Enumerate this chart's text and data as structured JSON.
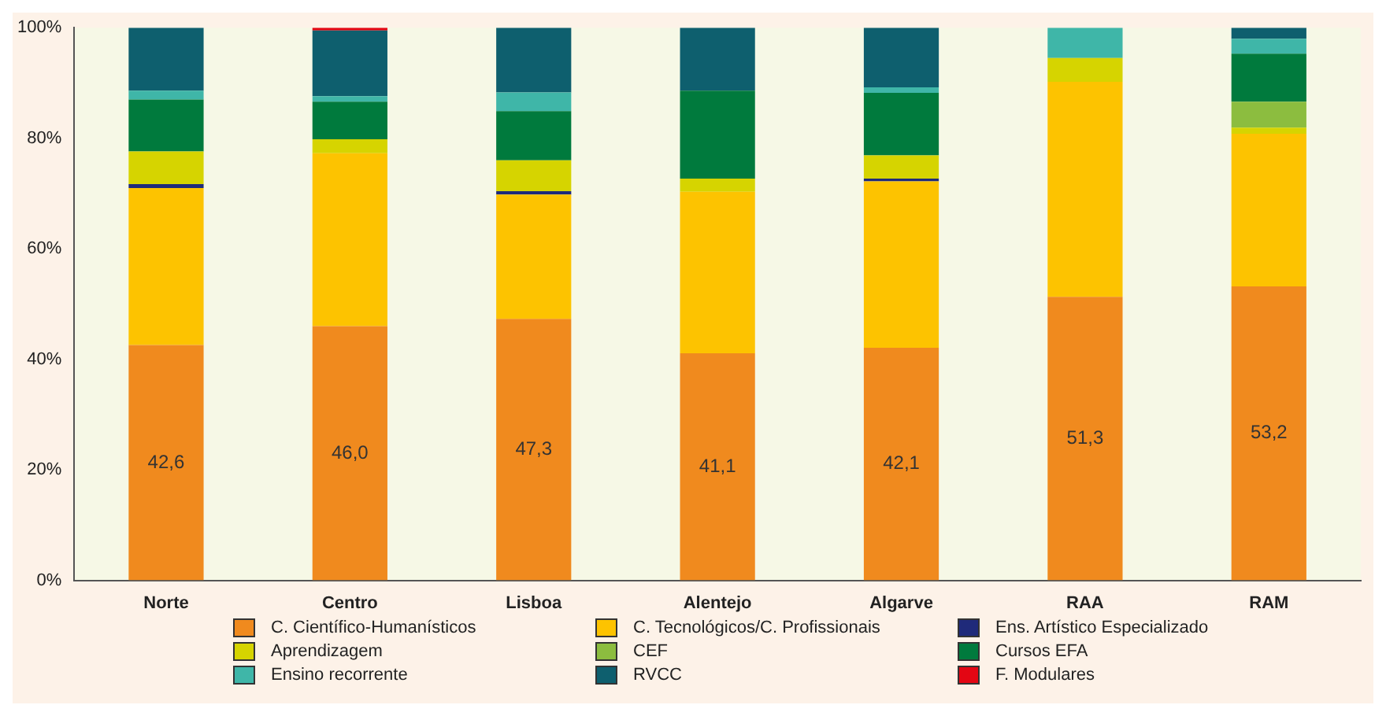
{
  "chart_data": {
    "type": "bar",
    "stacked": true,
    "legend": "bottom",
    "grid": false,
    "categories": [
      "Norte",
      "Centro",
      "Lisboa",
      "Alentejo",
      "Algarve",
      "RAA",
      "RAM"
    ],
    "ylim": [
      0,
      100
    ],
    "yticks": [
      {
        "value": 0,
        "label": "0%"
      },
      {
        "value": 20,
        "label": "20%"
      },
      {
        "value": 40,
        "label": "40%"
      },
      {
        "value": 60,
        "label": "60%"
      },
      {
        "value": 80,
        "label": "80%"
      },
      {
        "value": 100,
        "label": "100%"
      }
    ],
    "series": [
      {
        "name": "C. Científico-Humanísticos",
        "color": "#f08a1e",
        "values": [
          42.6,
          46.0,
          47.3,
          41.1,
          42.1,
          51.3,
          53.2
        ],
        "value_labels": [
          "42,6",
          "46,0",
          "47,3",
          "41,1",
          "42,1",
          "51,3",
          "53,2"
        ]
      },
      {
        "name": "C. Tecnológicos/C. Profissionais",
        "color": "#fdc300",
        "values": [
          28.4,
          31.3,
          22.5,
          29.2,
          30.1,
          38.9,
          27.6
        ]
      },
      {
        "name": "Ens. Artístico Especializado",
        "color": "#1f2a7a",
        "values": [
          0.7,
          null,
          0.6,
          null,
          0.5,
          null,
          null
        ]
      },
      {
        "name": "Aprendizagem",
        "color": "#d6d400",
        "values": [
          5.9,
          2.5,
          5.6,
          2.4,
          4.2,
          4.3,
          1.1
        ]
      },
      {
        "name": "CEF",
        "color": "#8cbd3f",
        "values": [
          null,
          null,
          null,
          null,
          null,
          null,
          4.7
        ]
      },
      {
        "name": "Cursos EFA",
        "color": "#007a3d",
        "values": [
          9.4,
          6.8,
          8.9,
          15.9,
          11.3,
          null,
          8.7
        ]
      },
      {
        "name": "Ensino recorrente",
        "color": "#3fb6a8",
        "values": [
          1.6,
          1.0,
          3.4,
          null,
          1.0,
          5.5,
          2.7
        ]
      },
      {
        "name": "RVCC",
        "color": "#0e5f6e",
        "values": [
          11.4,
          11.9,
          11.7,
          11.4,
          10.8,
          null,
          2.0
        ]
      },
      {
        "name": "F. Modulares",
        "color": "#e30613",
        "values": [
          null,
          0.5,
          null,
          null,
          null,
          null,
          null
        ]
      }
    ]
  }
}
